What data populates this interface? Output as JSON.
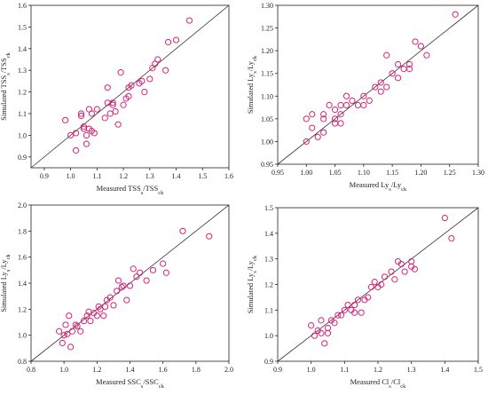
{
  "chart_data": [
    {
      "type": "scatter",
      "xlabel": {
        "base": "Measured TSS",
        "sub1": "s",
        "mid": "/TSS",
        "sub2": "ck"
      },
      "ylabel": {
        "base": "Simulated TSS",
        "sub1": "s",
        "mid": "/TSS",
        "sub2": "ck"
      },
      "xlim": [
        0.85,
        1.6
      ],
      "ylim": [
        0.85,
        1.6
      ],
      "xticks": [
        0.9,
        1.0,
        1.1,
        1.2,
        1.3,
        1.4,
        1.5,
        1.6
      ],
      "yticks": [
        0.9,
        1.0,
        1.1,
        1.2,
        1.3,
        1.4,
        1.5,
        1.6
      ],
      "decimals": 1,
      "points": [
        [
          0.98,
          1.07
        ],
        [
          1.0,
          1.0
        ],
        [
          1.02,
          1.01
        ],
        [
          1.02,
          0.93
        ],
        [
          1.04,
          1.1
        ],
        [
          1.04,
          1.09
        ],
        [
          1.05,
          1.04
        ],
        [
          1.05,
          1.03
        ],
        [
          1.06,
          0.96
        ],
        [
          1.06,
          1.0
        ],
        [
          1.07,
          1.12
        ],
        [
          1.07,
          1.03
        ],
        [
          1.08,
          1.02
        ],
        [
          1.08,
          1.1
        ],
        [
          1.09,
          1.01
        ],
        [
          1.1,
          1.12
        ],
        [
          1.13,
          1.08
        ],
        [
          1.14,
          1.22
        ],
        [
          1.14,
          1.15
        ],
        [
          1.15,
          1.1
        ],
        [
          1.16,
          1.15
        ],
        [
          1.16,
          1.14
        ],
        [
          1.17,
          1.11
        ],
        [
          1.18,
          1.05
        ],
        [
          1.19,
          1.29
        ],
        [
          1.2,
          1.14
        ],
        [
          1.21,
          1.17
        ],
        [
          1.22,
          1.18
        ],
        [
          1.22,
          1.22
        ],
        [
          1.23,
          1.23
        ],
        [
          1.26,
          1.24
        ],
        [
          1.27,
          1.25
        ],
        [
          1.28,
          1.2
        ],
        [
          1.3,
          1.26
        ],
        [
          1.31,
          1.31
        ],
        [
          1.32,
          1.33
        ],
        [
          1.33,
          1.35
        ],
        [
          1.36,
          1.3
        ],
        [
          1.37,
          1.43
        ],
        [
          1.4,
          1.44
        ],
        [
          1.45,
          1.53
        ]
      ]
    },
    {
      "type": "scatter",
      "xlabel": {
        "base": "Measured Ly",
        "sub1": "s",
        "mid": "/Ly",
        "sub2": "ck"
      },
      "ylabel": {
        "base": "Simulated Ly",
        "sub1": "s",
        "mid": "/Ly",
        "sub2": "ck"
      },
      "xlim": [
        0.95,
        1.3
      ],
      "ylim": [
        0.95,
        1.3
      ],
      "xticks": [
        0.95,
        1.0,
        1.05,
        1.1,
        1.15,
        1.2,
        1.25,
        1.3
      ],
      "yticks": [
        0.95,
        1.0,
        1.05,
        1.1,
        1.15,
        1.2,
        1.25,
        1.3
      ],
      "decimals": 2,
      "points": [
        [
          1.0,
          1.0
        ],
        [
          1.0,
          1.05
        ],
        [
          1.01,
          1.03
        ],
        [
          1.01,
          1.06
        ],
        [
          1.02,
          1.01
        ],
        [
          1.03,
          1.02
        ],
        [
          1.03,
          1.05
        ],
        [
          1.03,
          1.06
        ],
        [
          1.04,
          1.08
        ],
        [
          1.05,
          1.04
        ],
        [
          1.05,
          1.05
        ],
        [
          1.05,
          1.07
        ],
        [
          1.06,
          1.04
        ],
        [
          1.06,
          1.06
        ],
        [
          1.06,
          1.08
        ],
        [
          1.07,
          1.08
        ],
        [
          1.07,
          1.1
        ],
        [
          1.08,
          1.09
        ],
        [
          1.09,
          1.08
        ],
        [
          1.1,
          1.08
        ],
        [
          1.1,
          1.1
        ],
        [
          1.11,
          1.09
        ],
        [
          1.12,
          1.12
        ],
        [
          1.13,
          1.13
        ],
        [
          1.13,
          1.11
        ],
        [
          1.14,
          1.12
        ],
        [
          1.14,
          1.19
        ],
        [
          1.15,
          1.15
        ],
        [
          1.16,
          1.14
        ],
        [
          1.16,
          1.17
        ],
        [
          1.17,
          1.16
        ],
        [
          1.18,
          1.17
        ],
        [
          1.18,
          1.16
        ],
        [
          1.19,
          1.22
        ],
        [
          1.2,
          1.21
        ],
        [
          1.21,
          1.19
        ],
        [
          1.26,
          1.28
        ]
      ]
    },
    {
      "type": "scatter",
      "xlabel": {
        "base": "Measured SSC",
        "sub1": "s",
        "mid": "/SSC",
        "sub2": "ck"
      },
      "ylabel": {
        "base": "Simulated Ly",
        "sub1": "s",
        "mid": "/Ly",
        "sub2": "ck"
      },
      "xlim": [
        0.8,
        2.0
      ],
      "ylim": [
        0.8,
        2.0
      ],
      "xticks": [
        0.8,
        1.0,
        1.2,
        1.4,
        1.6,
        1.8,
        2.0
      ],
      "yticks": [
        0.8,
        1.0,
        1.2,
        1.4,
        1.6,
        1.8,
        2.0
      ],
      "decimals": 1,
      "points": [
        [
          0.97,
          1.03
        ],
        [
          0.99,
          0.94
        ],
        [
          1.0,
          1.0
        ],
        [
          1.01,
          1.08
        ],
        [
          1.02,
          1.01
        ],
        [
          1.03,
          1.15
        ],
        [
          1.04,
          0.91
        ],
        [
          1.05,
          1.03
        ],
        [
          1.07,
          1.08
        ],
        [
          1.08,
          1.07
        ],
        [
          1.1,
          1.03
        ],
        [
          1.12,
          1.11
        ],
        [
          1.14,
          1.15
        ],
        [
          1.15,
          1.18
        ],
        [
          1.16,
          1.11
        ],
        [
          1.18,
          1.17
        ],
        [
          1.2,
          1.15
        ],
        [
          1.21,
          1.22
        ],
        [
          1.22,
          1.2
        ],
        [
          1.24,
          1.15
        ],
        [
          1.25,
          1.22
        ],
        [
          1.26,
          1.27
        ],
        [
          1.28,
          1.29
        ],
        [
          1.3,
          1.23
        ],
        [
          1.32,
          1.34
        ],
        [
          1.33,
          1.42
        ],
        [
          1.35,
          1.37
        ],
        [
          1.36,
          1.38
        ],
        [
          1.38,
          1.27
        ],
        [
          1.4,
          1.38
        ],
        [
          1.42,
          1.51
        ],
        [
          1.44,
          1.45
        ],
        [
          1.46,
          1.48
        ],
        [
          1.5,
          1.42
        ],
        [
          1.54,
          1.5
        ],
        [
          1.6,
          1.55
        ],
        [
          1.62,
          1.48
        ],
        [
          1.72,
          1.8
        ],
        [
          1.88,
          1.76
        ]
      ]
    },
    {
      "type": "scatter",
      "xlabel": {
        "base": "Measured Cl",
        "sub1": "s",
        "mid": "/Cl",
        "sub2": "ck"
      },
      "ylabel": {
        "base": "Simulated Ly",
        "sub1": "s",
        "mid": "/Ly",
        "sub2": "ck"
      },
      "xlim": [
        0.9,
        1.5
      ],
      "ylim": [
        0.9,
        1.5
      ],
      "xticks": [
        0.9,
        1.0,
        1.1,
        1.2,
        1.3,
        1.4,
        1.5
      ],
      "yticks": [
        0.9,
        1.0,
        1.1,
        1.2,
        1.3,
        1.4,
        1.5
      ],
      "decimals": 1,
      "points": [
        [
          1.0,
          1.04
        ],
        [
          1.01,
          1.0
        ],
        [
          1.02,
          1.02
        ],
        [
          1.03,
          1.06
        ],
        [
          1.03,
          1.01
        ],
        [
          1.04,
          0.97
        ],
        [
          1.05,
          1.01
        ],
        [
          1.05,
          1.03
        ],
        [
          1.06,
          1.06
        ],
        [
          1.07,
          1.05
        ],
        [
          1.08,
          1.08
        ],
        [
          1.09,
          1.08
        ],
        [
          1.1,
          1.1
        ],
        [
          1.11,
          1.12
        ],
        [
          1.12,
          1.1
        ],
        [
          1.13,
          1.12
        ],
        [
          1.13,
          1.09
        ],
        [
          1.14,
          1.14
        ],
        [
          1.15,
          1.09
        ],
        [
          1.16,
          1.14
        ],
        [
          1.17,
          1.15
        ],
        [
          1.18,
          1.19
        ],
        [
          1.19,
          1.21
        ],
        [
          1.2,
          1.19
        ],
        [
          1.21,
          1.2
        ],
        [
          1.22,
          1.23
        ],
        [
          1.24,
          1.25
        ],
        [
          1.25,
          1.22
        ],
        [
          1.26,
          1.29
        ],
        [
          1.27,
          1.28
        ],
        [
          1.28,
          1.25
        ],
        [
          1.3,
          1.27
        ],
        [
          1.3,
          1.29
        ],
        [
          1.31,
          1.26
        ],
        [
          1.4,
          1.46
        ],
        [
          1.42,
          1.38
        ]
      ]
    }
  ],
  "colors": {
    "marker": "#d6247a",
    "reference_line": "#333333",
    "frame": "#222222"
  }
}
